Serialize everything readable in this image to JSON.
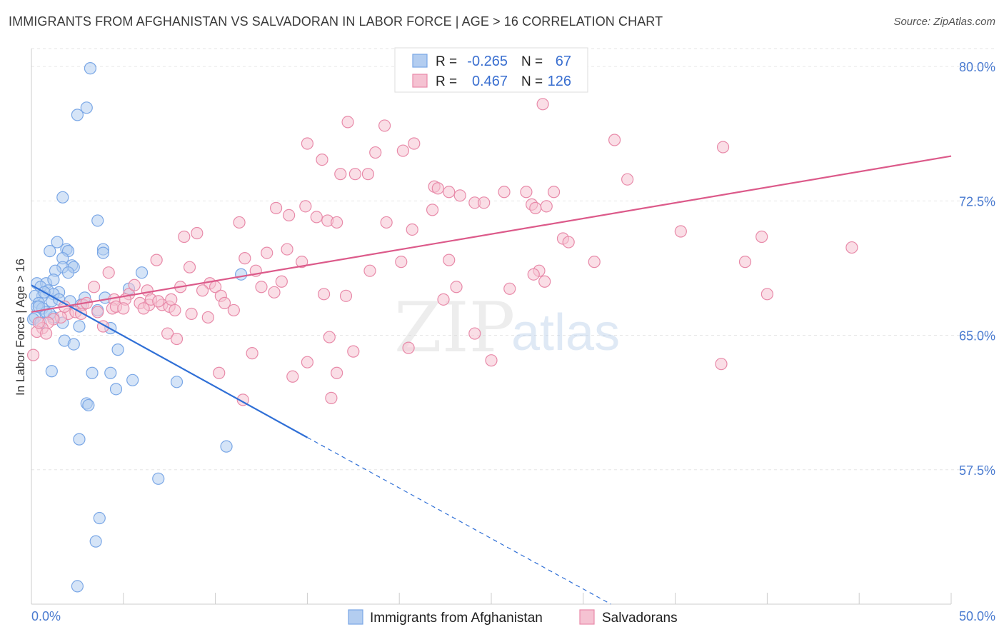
{
  "header": {
    "title": "IMMIGRANTS FROM AFGHANISTAN VS SALVADORAN IN LABOR FORCE | AGE > 16 CORRELATION CHART",
    "source": "Source: ZipAtlas.com"
  },
  "watermark": {
    "zip": "ZIP",
    "atlas": "atlas"
  },
  "chart_data": {
    "type": "scatter",
    "title": "IMMIGRANTS FROM AFGHANISTAN VS SALVADORAN IN LABOR FORCE | AGE > 16 CORRELATION CHART",
    "xlabel": "",
    "ylabel": "In Labor Force | Age > 16",
    "xlim": [
      0,
      50
    ],
    "ylim": [
      50,
      81
    ],
    "x_tick_labels": [
      "0.0%",
      "50.0%"
    ],
    "y_ticks": [
      57.5,
      65.0,
      72.5,
      80.0
    ],
    "y_tick_labels": [
      "57.5%",
      "65.0%",
      "72.5%",
      "80.0%"
    ],
    "legend": {
      "placement": "top-center",
      "entries": [
        {
          "r_label": "R =",
          "r": "-0.265",
          "n_label": "N =",
          "n": "67"
        },
        {
          "r_label": "R =",
          "r": "0.467",
          "n_label": "N =",
          "n": "126"
        }
      ]
    },
    "series": [
      {
        "name": "Immigrants from Afghanistan",
        "color": "#7aa7e6",
        "fill": "#b3cdf0",
        "line_color": "#2f6fd6",
        "trend": {
          "x0": 0,
          "y0": 67.8,
          "x1": 15,
          "y1": 59.3,
          "dash_to_x": 31.5,
          "dash_to_y": 50.0
        },
        "points": [
          [
            3.2,
            79.9
          ],
          [
            3.0,
            77.7
          ],
          [
            2.5,
            77.3
          ],
          [
            1.7,
            72.7
          ],
          [
            3.6,
            71.4
          ],
          [
            1.4,
            70.2
          ],
          [
            1.9,
            69.8
          ],
          [
            1.0,
            69.7
          ],
          [
            2.0,
            69.7
          ],
          [
            3.9,
            69.8
          ],
          [
            3.9,
            69.6
          ],
          [
            1.7,
            69.3
          ],
          [
            2.2,
            68.9
          ],
          [
            1.7,
            68.8
          ],
          [
            2.3,
            68.8
          ],
          [
            1.3,
            68.6
          ],
          [
            6.0,
            68.5
          ],
          [
            11.4,
            68.4
          ],
          [
            0.3,
            67.9
          ],
          [
            0.8,
            67.9
          ],
          [
            1.2,
            68.1
          ],
          [
            0.5,
            67.7
          ],
          [
            0.9,
            67.5
          ],
          [
            1.5,
            67.4
          ],
          [
            1.2,
            67.3
          ],
          [
            5.3,
            67.6
          ],
          [
            0.6,
            67.2
          ],
          [
            0.2,
            67.2
          ],
          [
            2.9,
            67.1
          ],
          [
            4.0,
            67.1
          ],
          [
            1.1,
            66.9
          ],
          [
            2.1,
            66.9
          ],
          [
            0.4,
            66.8
          ],
          [
            2.7,
            66.7
          ],
          [
            0.3,
            66.6
          ],
          [
            0.6,
            66.5
          ],
          [
            0.8,
            66.3
          ],
          [
            3.6,
            66.4
          ],
          [
            1.2,
            66.0
          ],
          [
            0.2,
            66.0
          ],
          [
            1.7,
            65.7
          ],
          [
            2.6,
            65.5
          ],
          [
            4.3,
            65.4
          ],
          [
            1.8,
            64.7
          ],
          [
            2.3,
            64.5
          ],
          [
            4.7,
            64.2
          ],
          [
            1.1,
            63.0
          ],
          [
            3.3,
            62.9
          ],
          [
            4.3,
            62.9
          ],
          [
            5.5,
            62.5
          ],
          [
            7.9,
            62.4
          ],
          [
            4.6,
            62.0
          ],
          [
            3.0,
            61.2
          ],
          [
            3.1,
            61.1
          ],
          [
            2.6,
            59.2
          ],
          [
            10.6,
            58.8
          ],
          [
            6.9,
            57.0
          ],
          [
            3.7,
            54.8
          ],
          [
            3.5,
            53.5
          ],
          [
            2.5,
            51.0
          ],
          [
            0.4,
            66.6
          ],
          [
            1.5,
            67.0
          ],
          [
            0.7,
            67.4
          ],
          [
            2.0,
            68.5
          ],
          [
            1.0,
            66.2
          ],
          [
            0.1,
            65.9
          ],
          [
            0.5,
            65.7
          ]
        ]
      },
      {
        "name": "Salvadorans",
        "color": "#e88aa9",
        "fill": "#f5c2d2",
        "line_color": "#dc5a8a",
        "trend": {
          "x0": 0,
          "y0": 66.3,
          "x1": 50,
          "y1": 75.0
        },
        "points": [
          [
            27.8,
            77.9
          ],
          [
            17.2,
            76.9
          ],
          [
            19.2,
            76.7
          ],
          [
            31.7,
            75.9
          ],
          [
            15.0,
            75.7
          ],
          [
            20.8,
            75.7
          ],
          [
            20.2,
            75.3
          ],
          [
            18.7,
            75.2
          ],
          [
            37.6,
            75.5
          ],
          [
            15.8,
            74.8
          ],
          [
            16.8,
            74.0
          ],
          [
            17.6,
            74.0
          ],
          [
            18.3,
            74.0
          ],
          [
            32.4,
            73.7
          ],
          [
            21.9,
            73.3
          ],
          [
            22.1,
            73.2
          ],
          [
            25.7,
            73.0
          ],
          [
            26.9,
            73.0
          ],
          [
            28.4,
            73.0
          ],
          [
            22.7,
            73.0
          ],
          [
            23.3,
            72.8
          ],
          [
            24.1,
            72.4
          ],
          [
            24.6,
            72.4
          ],
          [
            27.2,
            72.3
          ],
          [
            28.0,
            72.2
          ],
          [
            27.4,
            72.1
          ],
          [
            13.3,
            72.1
          ],
          [
            14.9,
            72.2
          ],
          [
            21.8,
            72.0
          ],
          [
            14.0,
            71.7
          ],
          [
            15.5,
            71.6
          ],
          [
            16.1,
            71.4
          ],
          [
            16.6,
            71.3
          ],
          [
            19.3,
            71.3
          ],
          [
            11.3,
            71.3
          ],
          [
            9.0,
            70.7
          ],
          [
            8.3,
            70.5
          ],
          [
            20.7,
            70.9
          ],
          [
            28.9,
            70.4
          ],
          [
            29.2,
            70.2
          ],
          [
            35.3,
            70.8
          ],
          [
            39.7,
            70.5
          ],
          [
            44.6,
            69.9
          ],
          [
            12.8,
            69.6
          ],
          [
            11.6,
            69.3
          ],
          [
            6.8,
            69.2
          ],
          [
            14.7,
            69.1
          ],
          [
            20.1,
            69.1
          ],
          [
            22.7,
            69.2
          ],
          [
            30.6,
            69.1
          ],
          [
            38.8,
            69.1
          ],
          [
            18.4,
            68.6
          ],
          [
            27.6,
            68.6
          ],
          [
            27.3,
            68.4
          ],
          [
            8.6,
            68.8
          ],
          [
            4.2,
            68.5
          ],
          [
            13.6,
            68.0
          ],
          [
            27.9,
            68.0
          ],
          [
            23.1,
            67.7
          ],
          [
            26.0,
            67.6
          ],
          [
            3.4,
            67.7
          ],
          [
            9.7,
            67.9
          ],
          [
            8.1,
            67.7
          ],
          [
            10.0,
            67.7
          ],
          [
            12.5,
            67.7
          ],
          [
            6.3,
            67.5
          ],
          [
            10.3,
            67.2
          ],
          [
            13.2,
            67.4
          ],
          [
            15.9,
            67.3
          ],
          [
            17.1,
            67.2
          ],
          [
            22.4,
            67.0
          ],
          [
            5.3,
            67.3
          ],
          [
            4.5,
            67.0
          ],
          [
            5.1,
            67.0
          ],
          [
            5.9,
            66.8
          ],
          [
            6.4,
            66.7
          ],
          [
            7.1,
            66.7
          ],
          [
            7.5,
            66.6
          ],
          [
            10.5,
            66.8
          ],
          [
            11.0,
            66.4
          ],
          [
            7.8,
            66.4
          ],
          [
            6.1,
            66.5
          ],
          [
            4.4,
            66.5
          ],
          [
            2.8,
            66.7
          ],
          [
            2.0,
            66.2
          ],
          [
            1.6,
            66.0
          ],
          [
            1.2,
            65.9
          ],
          [
            0.9,
            65.7
          ],
          [
            2.4,
            66.3
          ],
          [
            3.6,
            66.3
          ],
          [
            4.6,
            66.6
          ],
          [
            9.6,
            66.0
          ],
          [
            3.9,
            65.5
          ],
          [
            0.6,
            65.4
          ],
          [
            0.3,
            65.2
          ],
          [
            7.4,
            65.1
          ],
          [
            7.9,
            64.8
          ],
          [
            16.2,
            64.9
          ],
          [
            24.1,
            65.1
          ],
          [
            40.0,
            67.3
          ],
          [
            5.6,
            67.8
          ],
          [
            6.5,
            67.0
          ],
          [
            8.7,
            66.2
          ],
          [
            17.5,
            64.1
          ],
          [
            12.0,
            64.0
          ],
          [
            20.5,
            64.3
          ],
          [
            15.0,
            63.5
          ],
          [
            25.0,
            63.6
          ],
          [
            14.2,
            62.7
          ],
          [
            10.2,
            62.9
          ],
          [
            16.6,
            62.9
          ],
          [
            37.5,
            63.4
          ],
          [
            11.5,
            61.4
          ],
          [
            16.3,
            61.5
          ],
          [
            0.1,
            63.9
          ],
          [
            0.4,
            65.7
          ],
          [
            0.8,
            65.1
          ],
          [
            1.8,
            66.6
          ],
          [
            2.7,
            66.2
          ],
          [
            3.0,
            66.8
          ],
          [
            5.0,
            66.5
          ],
          [
            6.9,
            66.9
          ],
          [
            7.6,
            67.0
          ],
          [
            9.3,
            67.5
          ],
          [
            12.2,
            68.6
          ],
          [
            13.9,
            69.8
          ]
        ]
      }
    ]
  },
  "bottom_legend": {
    "items": [
      {
        "label": "Immigrants from Afghanistan"
      },
      {
        "label": "Salvadorans"
      }
    ]
  }
}
